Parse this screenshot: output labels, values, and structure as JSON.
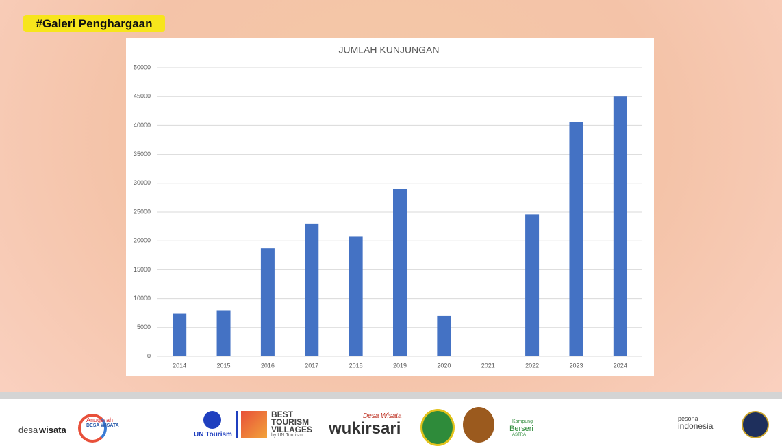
{
  "header": {
    "tag": "#Galeri Penghargaan"
  },
  "chart_data": {
    "type": "bar",
    "title": "JUMLAH KUNJUNGAN",
    "categories": [
      "2014",
      "2015",
      "2016",
      "2017",
      "2018",
      "2019",
      "2020",
      "2021",
      "2022",
      "2023",
      "2024"
    ],
    "values": [
      7400,
      8000,
      18700,
      23000,
      20800,
      29000,
      7000,
      0,
      24600,
      40600,
      45000
    ],
    "color": "#4472c4",
    "ylim": [
      0,
      50000
    ],
    "yticks": [
      0,
      5000,
      10000,
      15000,
      20000,
      25000,
      30000,
      35000,
      40000,
      45000,
      50000
    ],
    "grid": true
  },
  "footer": {
    "logos": {
      "desa": "desa",
      "wisata": "wisata",
      "anugerah": "Anugerah",
      "anugerah_sub": "DESA WISATA",
      "un": "UN Tourism",
      "btv1": "BEST",
      "btv2": "TOURISM",
      "btv3": "VILLAGES",
      "btv4": "by UN Tourism",
      "wk1": "Desa Wisata",
      "wk2": "wukirsari",
      "kb1": "Kampung",
      "kb2": "Berseri",
      "kb3": "ASTRA",
      "pi1": "pesona",
      "pi2": "indonesia"
    }
  }
}
